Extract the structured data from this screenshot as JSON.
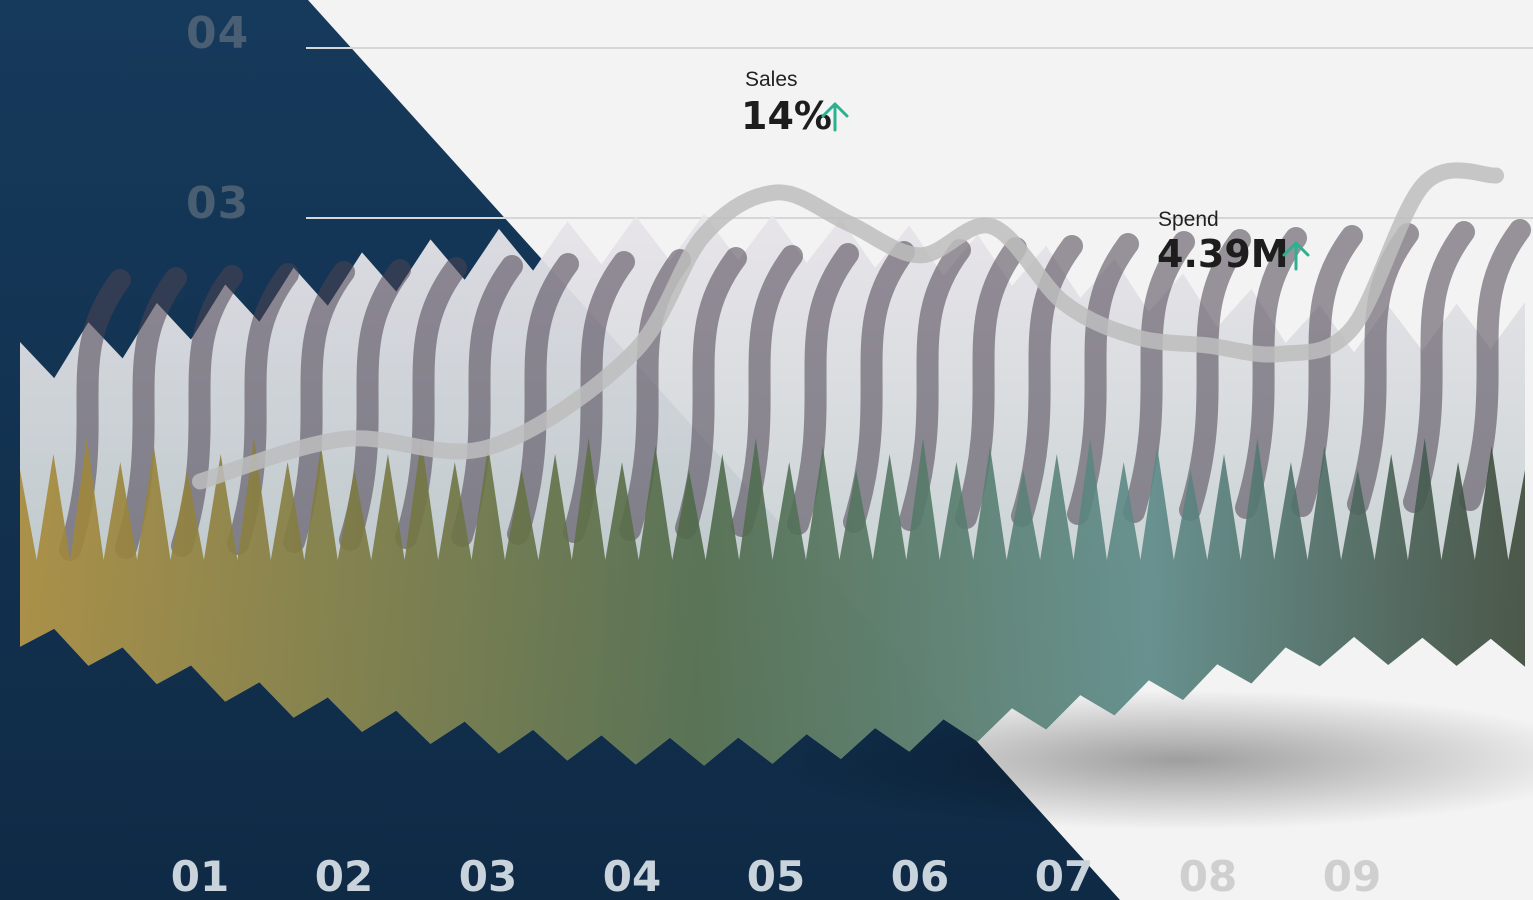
{
  "chart_data": {
    "type": "line",
    "title": "",
    "xlabel": "",
    "ylabel": "",
    "x_ticks": [
      "01",
      "02",
      "03",
      "04",
      "05",
      "06",
      "07",
      "08",
      "09"
    ],
    "y_ticks": [
      "03",
      "04"
    ],
    "grid": true,
    "series": [
      {
        "x": [
          1.0,
          2.0,
          3.0,
          4.0,
          4.5,
          5.0,
          5.5,
          6.0,
          6.5,
          7.0,
          7.5,
          8.0,
          8.5,
          9.0,
          9.5,
          10.0
        ],
        "values": [
          1.45,
          1.7,
          1.65,
          2.2,
          2.9,
          3.15,
          2.97,
          2.78,
          2.95,
          2.5,
          2.3,
          2.25,
          2.2,
          2.35,
          3.2,
          3.25
        ]
      }
    ]
  },
  "annotations": [
    {
      "label": "Sales",
      "value": "14%",
      "trend": "up"
    },
    {
      "label": "Spend",
      "value": "4.39M",
      "trend": "up"
    }
  ],
  "colors": {
    "background": "#f3f3f3",
    "panel": "#163a5c",
    "line": "#bdbdbd",
    "arrow": "#2bb18f",
    "tick_on_panel": "#c9d3dc",
    "tick_on_light": "#cfcfcf",
    "ytick": "#5c6c7c"
  },
  "icons": {
    "trend_up": "arrow-up-icon",
    "illustration": "pine-cone-forest-illustration"
  }
}
